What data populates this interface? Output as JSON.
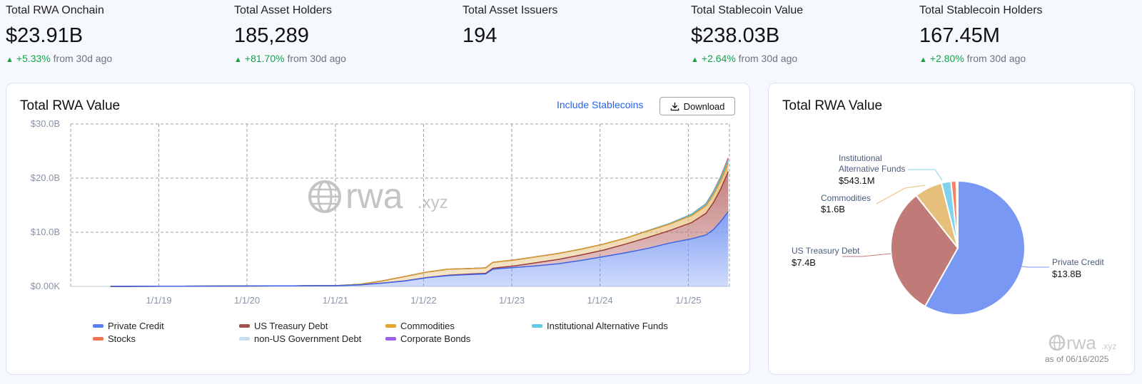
{
  "stats": [
    {
      "label": "Total RWA Onchain",
      "value": "$23.91B",
      "change": "+5.33%",
      "suffix": "from 30d ago"
    },
    {
      "label": "Total Asset Holders",
      "value": "185,289",
      "change": "+81.70%",
      "suffix": "from 30d ago"
    },
    {
      "label": "Total Asset Issuers",
      "value": "194",
      "change": "",
      "suffix": ""
    },
    {
      "label": "Total Stablecoin Value",
      "value": "$238.03B",
      "change": "+2.64%",
      "suffix": "from 30d ago"
    },
    {
      "label": "Total Stablecoin Holders",
      "value": "167.45M",
      "change": "+2.80%",
      "suffix": "from 30d ago"
    }
  ],
  "left_card": {
    "title": "Total RWA Value",
    "include_stablecoins": "Include Stablecoins",
    "download": "Download",
    "watermark": "rwa",
    "watermark_tld": ".xyz"
  },
  "right_card": {
    "title": "Total RWA Value",
    "watermark": "rwa",
    "watermark_tld": ".xyz",
    "as_of": "as of 06/16/2025"
  },
  "colors": {
    "private_credit": "#7898f4",
    "us_treasury": "#c07a78",
    "commodities": "#e6c07a",
    "inst_alt_funds": "#7ed3ec",
    "stocks": "#f28463",
    "non_us_gov": "#c5dff0",
    "corp_bonds": "#a270e6",
    "positive": "#16a34a"
  },
  "chart_data": [
    {
      "type": "area",
      "title": "Total RWA Value",
      "stacked": true,
      "x_ticks": [
        "1/1/19",
        "1/1/20",
        "1/1/21",
        "1/1/22",
        "1/1/23",
        "1/1/24",
        "1/1/25"
      ],
      "y_ticks": [
        "$0.00K",
        "$10.0B",
        "$20.0B",
        "$30.0B"
      ],
      "ylim": [
        0,
        30
      ],
      "y_unit": "B",
      "grid": true,
      "legend_position": "bottom",
      "x": [
        "2018-06",
        "2019-01",
        "2019-07",
        "2020-01",
        "2020-07",
        "2021-01",
        "2021-04",
        "2021-07",
        "2021-10",
        "2022-01",
        "2022-04",
        "2022-07",
        "2022-09",
        "2022-10",
        "2023-01",
        "2023-04",
        "2023-07",
        "2023-10",
        "2024-01",
        "2024-04",
        "2024-07",
        "2024-10",
        "2025-01",
        "2025-03",
        "2025-04",
        "2025-05",
        "2025-06"
      ],
      "series": [
        {
          "name": "Private Credit",
          "values": [
            0,
            0.02,
            0.05,
            0.08,
            0.1,
            0.15,
            0.3,
            0.6,
            1.0,
            1.6,
            2.0,
            2.2,
            2.3,
            3.2,
            3.5,
            3.8,
            4.2,
            4.8,
            5.5,
            6.2,
            7.0,
            8.0,
            8.8,
            9.5,
            10.5,
            12.0,
            13.8
          ]
        },
        {
          "name": "US Treasury Debt",
          "values": [
            0,
            0,
            0,
            0,
            0,
            0,
            0,
            0.02,
            0.03,
            0.05,
            0.08,
            0.1,
            0.12,
            0.15,
            0.3,
            0.6,
            0.8,
            1.0,
            1.2,
            1.6,
            2.0,
            2.3,
            3.0,
            4.0,
            5.0,
            6.0,
            7.4
          ]
        },
        {
          "name": "Commodities",
          "values": [
            0,
            0,
            0,
            0,
            0,
            0.01,
            0.1,
            0.4,
            0.8,
            1.0,
            1.1,
            1.0,
            1.0,
            1.1,
            1.1,
            1.1,
            1.1,
            1.1,
            1.1,
            1.1,
            1.2,
            1.2,
            1.3,
            1.4,
            1.5,
            1.5,
            1.6
          ]
        },
        {
          "name": "Institutional Alternative Funds",
          "values": [
            0,
            0,
            0,
            0,
            0,
            0,
            0,
            0,
            0,
            0,
            0,
            0,
            0,
            0,
            0,
            0,
            0,
            0,
            0,
            0,
            0.05,
            0.1,
            0.2,
            0.3,
            0.4,
            0.5,
            0.54
          ]
        },
        {
          "name": "Stocks",
          "values": [
            0,
            0,
            0,
            0,
            0,
            0,
            0,
            0,
            0,
            0,
            0,
            0,
            0,
            0,
            0,
            0,
            0,
            0,
            0,
            0,
            0,
            0,
            0.02,
            0.05,
            0.1,
            0.2,
            0.3
          ]
        },
        {
          "name": "non-US Government Debt",
          "values": [
            0,
            0,
            0,
            0,
            0,
            0,
            0,
            0,
            0,
            0,
            0,
            0,
            0,
            0,
            0,
            0,
            0,
            0,
            0,
            0,
            0,
            0,
            0.02,
            0.03,
            0.03,
            0.04,
            0.05
          ]
        },
        {
          "name": "Corporate Bonds",
          "values": [
            0,
            0,
            0,
            0,
            0,
            0,
            0,
            0,
            0,
            0,
            0,
            0,
            0,
            0,
            0,
            0,
            0,
            0,
            0,
            0,
            0,
            0,
            0.01,
            0.02,
            0.02,
            0.03,
            0.04
          ]
        }
      ]
    },
    {
      "type": "pie",
      "title": "Total RWA Value",
      "slices": [
        {
          "name": "Private Credit",
          "value": 13.8,
          "label": "$13.8B",
          "color": "#7898f4"
        },
        {
          "name": "US Treasury Debt",
          "value": 7.4,
          "label": "$7.4B",
          "color": "#c07a78"
        },
        {
          "name": "Commodities",
          "value": 1.6,
          "label": "$1.6B",
          "color": "#e6c07a"
        },
        {
          "name": "Institutional Alternative Funds",
          "value": 0.5431,
          "label": "$543.1M",
          "color": "#7ed3ec"
        },
        {
          "name": "Stocks",
          "value": 0.3,
          "label": "",
          "color": "#f28463"
        },
        {
          "name": "non-US Government Debt",
          "value": 0.05,
          "label": "",
          "color": "#c5dff0"
        },
        {
          "name": "Corporate Bonds",
          "value": 0.04,
          "label": "",
          "color": "#a270e6"
        }
      ],
      "labeled_slices": [
        {
          "name_lines": [
            "Private Credit"
          ],
          "label": "$13.8B"
        },
        {
          "name_lines": [
            "US Treasury Debt"
          ],
          "label": "$7.4B"
        },
        {
          "name_lines": [
            "Commodities"
          ],
          "label": "$1.6B"
        },
        {
          "name_lines": [
            "Institutional",
            "Alternative Funds"
          ],
          "label": "$543.1M"
        }
      ]
    }
  ]
}
